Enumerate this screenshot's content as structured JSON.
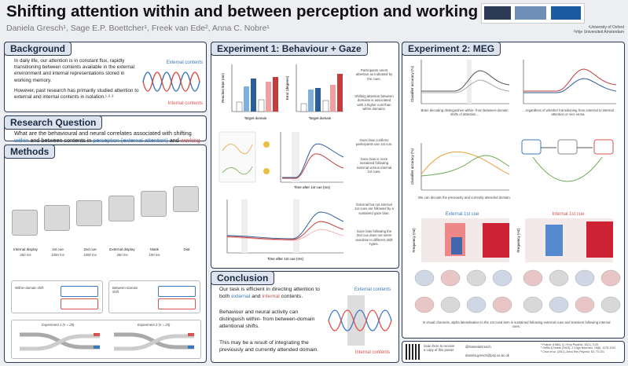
{
  "header": {
    "title": "Shifting attention within and between perception and working memory",
    "authors": "Daniela Gresch¹, Sage E.P. Boettcher¹, Freek van Ede², Anna C. Nobre¹",
    "affiliations": [
      "¹University of Oxford",
      "²Vrije Universiteit Amsterdam"
    ]
  },
  "background": {
    "heading": "Background",
    "p1": "In daily life, our attention is in constant flux, rapidly transitioning between contents available in the external environment and internal representations stored in working memory.",
    "p2": "However, past research has primarily studied attention to external and internal contents in isolation.¹·²·³",
    "external": "External contents",
    "internal": "Internal contents"
  },
  "question": {
    "heading": "Research Question",
    "parts": [
      "What are the behavioural and neural correlates associated with shifting ",
      "within",
      " and between contents in ",
      "perception (external attention)",
      " and ",
      "working memory (internal attention)",
      "?"
    ]
  },
  "methods": {
    "heading": "Methods",
    "steps": [
      "Internal display",
      "1st cue",
      "2nd cue",
      "External display",
      "Mask",
      "Dial"
    ],
    "times": [
      "250 ms",
      "1000 ms",
      "1000 ms",
      "250 ms",
      "100 ms",
      ""
    ],
    "within": "Within-domain shift",
    "between": "Between-domain shift",
    "exp1": "Experiment 1 (n = 25)",
    "exp2": "Experiment 2 (n = 25)"
  },
  "exp1": {
    "heading": "Experiment 1: Behaviour + Gaze",
    "xlabel": "Target domain",
    "rt": "Reaction time (ms)",
    "err": "Error (degrees)",
    "time": "Time after 1st cue (ms)",
    "notes": [
      "Participants orient attention as indicated by the cues.",
      "Shifting attention between domains is associated with a higher cost than within domains.",
      "Gaze bias confirms participants use 1st cue.",
      "Gaze bias is more sustained following external versus internal 1st cues.",
      "External but not internal 1st cues are followed by a sustained gaze bias.",
      "Gaze bias following the 2nd cue does not seem sensitive to different shift types."
    ]
  },
  "conclusion": {
    "heading": "Conclusion",
    "p1": [
      "Our task is efficient in directing attention to both ",
      "external",
      " and ",
      "internal",
      " contents."
    ],
    "p2": "Behaviour and neural activity can distinguish within- from between-domain attentional shifts.",
    "p3": "This may be a result of integrating the previously and currently attended domain.",
    "external": "External contents",
    "internal": "Internal contents"
  },
  "exp2": {
    "heading": "Experiment 2: MEG",
    "notes": [
      "Brain decoding distinguishes within- from between-domain shifts of attention...",
      "...regardless of whether transitioning from external to internal attention or vice versa.",
      "We can decode the previously and currently attended domain.",
      "In visual channels, alpha lateralisation to the 1st cued item is sustained following external cues and transient following internal cues."
    ],
    "ext_cue": "External 1st cue",
    "int_cue": "Internal 1st cue",
    "ylabel": "Classifier accuracy (%)",
    "freq": "Frequency (Hz)"
  },
  "footer": {
    "qr": "Scan here to receive a copy of this poster",
    "twitter": "@DanielaGresch",
    "email": "daniela.gresch@psy.ox.ac.uk",
    "refs": [
      "¹ Posner (1980), Q J Exp Psychol, 32(1), 3-25",
      "² Griffin & Nobre (2003), J Cogn Neurosci, 15(8), 1176-1194",
      "³ Chun et al. (2011), Annu Rev Psychol, 62, 73-101"
    ]
  }
}
